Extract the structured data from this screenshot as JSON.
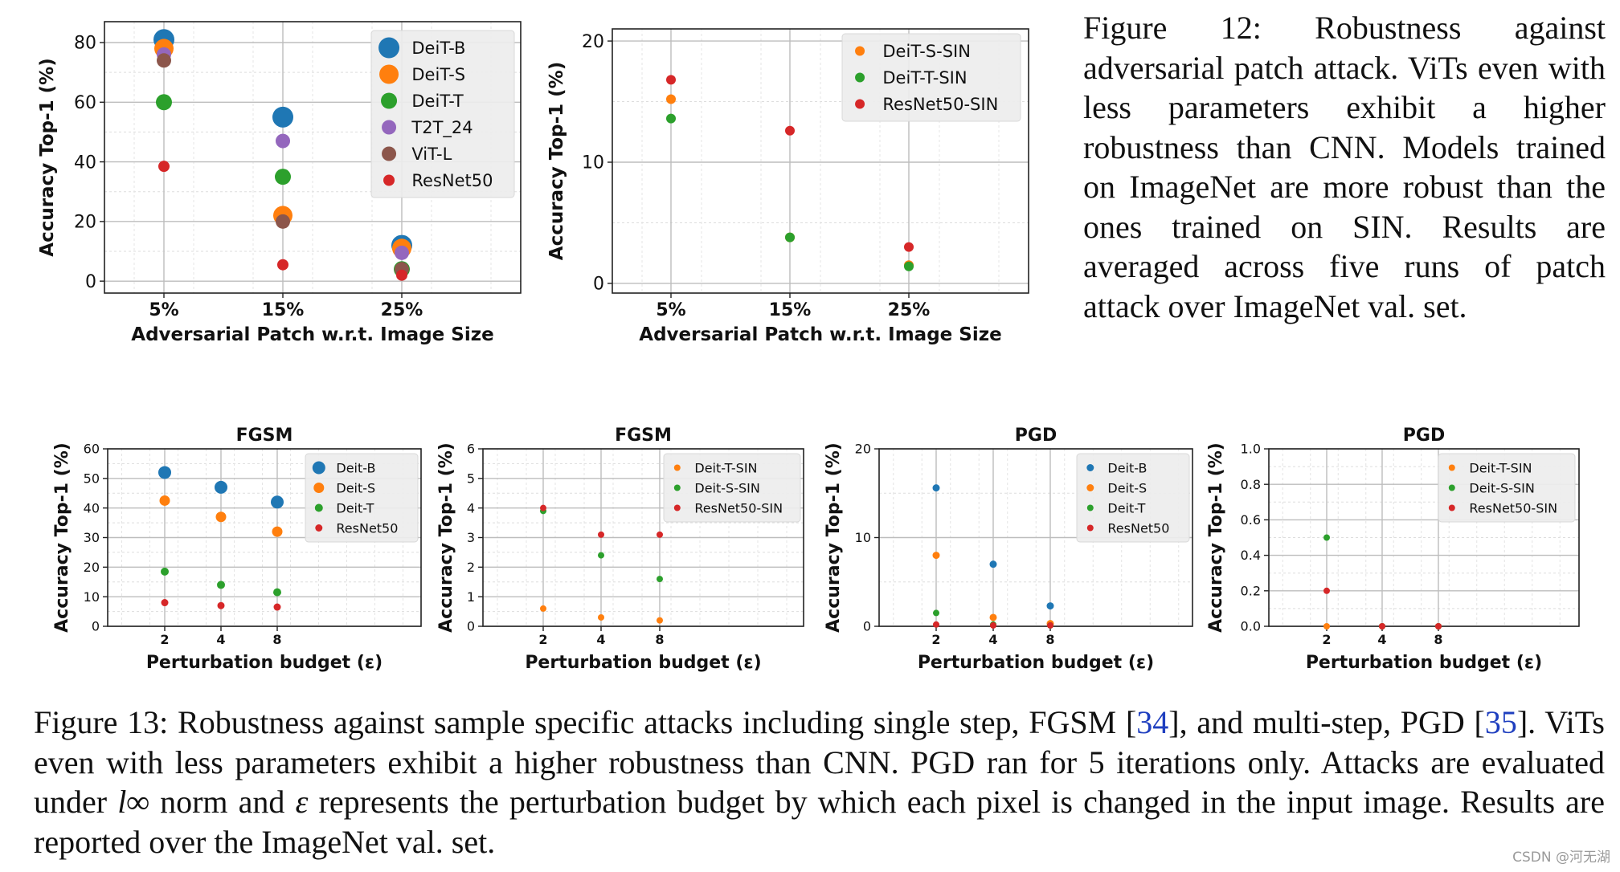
{
  "chart_data": [
    {
      "id": "fig12a",
      "type": "scatter",
      "xlabel": "Adversarial Patch w.r.t. Image Size",
      "ylabel": "Accuracy Top-1 (%)",
      "categories": [
        "5%",
        "15%",
        "25%"
      ],
      "yticks": [
        0,
        20,
        40,
        60,
        80
      ],
      "ylim": [
        -4,
        87
      ],
      "legend_position": "top-right",
      "grid": true,
      "series": [
        {
          "name": "DeiT-B",
          "color": "#1f77b4",
          "values": [
            81,
            55,
            12
          ]
        },
        {
          "name": "DeiT-S",
          "color": "#ff7f0e",
          "values": [
            78,
            22,
            11
          ]
        },
        {
          "name": "DeiT-T",
          "color": "#2ca02c",
          "values": [
            60,
            35,
            4
          ]
        },
        {
          "name": "T2T_24",
          "color": "#9467bd",
          "values": [
            76,
            47,
            9.5
          ]
        },
        {
          "name": "ViT-L",
          "color": "#8c564b",
          "values": [
            74,
            20,
            4
          ]
        },
        {
          "name": "ResNet50",
          "color": "#d62728",
          "values": [
            38.5,
            5.5,
            2
          ]
        }
      ]
    },
    {
      "id": "fig12b",
      "type": "scatter",
      "xlabel": "Adversarial Patch w.r.t. Image Size",
      "ylabel": "Accuracy Top-1 (%)",
      "categories": [
        "5%",
        "15%",
        "25%"
      ],
      "yticks": [
        0,
        10,
        20
      ],
      "ylim": [
        -0.8,
        21
      ],
      "legend_position": "top-right",
      "grid": true,
      "series": [
        {
          "name": "DeiT-S-SIN",
          "color": "#ff7f0e",
          "values": [
            15.2,
            3.8,
            1.5
          ]
        },
        {
          "name": "DeiT-T-SIN",
          "color": "#2ca02c",
          "values": [
            13.6,
            3.8,
            1.4
          ]
        },
        {
          "name": "ResNet50-SIN",
          "color": "#d62728",
          "values": [
            16.8,
            12.6,
            3
          ]
        }
      ]
    },
    {
      "id": "fig13a",
      "type": "scatter",
      "title": "FGSM",
      "xlabel": "Perturbation budget (ε)",
      "ylabel": "Accuracy Top-1 (%)",
      "categories": [
        "2",
        "4",
        "8"
      ],
      "yticks": [
        0,
        10,
        20,
        30,
        40,
        50,
        60
      ],
      "ylim": [
        0,
        60
      ],
      "legend_position": "top-right",
      "grid": true,
      "series": [
        {
          "name": "Deit-B",
          "color": "#1f77b4",
          "values": [
            52,
            47,
            42
          ]
        },
        {
          "name": "Deit-S",
          "color": "#ff7f0e",
          "values": [
            42.5,
            37,
            32
          ]
        },
        {
          "name": "Deit-T",
          "color": "#2ca02c",
          "values": [
            18.5,
            14,
            11.5
          ]
        },
        {
          "name": "ResNet50",
          "color": "#d62728",
          "values": [
            8,
            7,
            6.5
          ]
        }
      ]
    },
    {
      "id": "fig13b",
      "type": "scatter",
      "title": "FGSM",
      "xlabel": "Perturbation budget (ε)",
      "ylabel": "Accuracy Top-1 (%)",
      "categories": [
        "2",
        "4",
        "8"
      ],
      "yticks": [
        0,
        1,
        2,
        3,
        4,
        5,
        6
      ],
      "ylim": [
        0,
        6
      ],
      "legend_position": "top-right",
      "grid": true,
      "series": [
        {
          "name": "Deit-T-SIN",
          "color": "#ff7f0e",
          "values": [
            0.6,
            0.3,
            0.2
          ]
        },
        {
          "name": "Deit-S-SIN",
          "color": "#2ca02c",
          "values": [
            3.9,
            2.4,
            1.6
          ]
        },
        {
          "name": "ResNet50-SIN",
          "color": "#d62728",
          "values": [
            4,
            3.1,
            3.1
          ]
        }
      ]
    },
    {
      "id": "fig13c",
      "type": "scatter",
      "title": "PGD",
      "xlabel": "Perturbation budget (ε)",
      "ylabel": "Accuracy Top-1 (%)",
      "categories": [
        "2",
        "4",
        "8"
      ],
      "yticks": [
        0,
        10,
        20
      ],
      "ylim": [
        0,
        20
      ],
      "legend_position": "top-right",
      "grid": true,
      "series": [
        {
          "name": "Deit-B",
          "color": "#1f77b4",
          "values": [
            15.6,
            7,
            2.3
          ]
        },
        {
          "name": "Deit-S",
          "color": "#ff7f0e",
          "values": [
            8,
            1,
            0.3
          ]
        },
        {
          "name": "Deit-T",
          "color": "#2ca02c",
          "values": [
            1.5,
            0.2,
            0.1
          ]
        },
        {
          "name": "ResNet50",
          "color": "#d62728",
          "values": [
            0.2,
            0.1,
            0.1
          ]
        }
      ]
    },
    {
      "id": "fig13d",
      "type": "scatter",
      "title": "PGD",
      "xlabel": "Perturbation budget (ε)",
      "ylabel": "Accuracy Top-1 (%)",
      "categories": [
        "2",
        "4",
        "8"
      ],
      "yticks": [
        "0.0",
        "0.2",
        "0.4",
        "0.6",
        "0.8",
        "1.0"
      ],
      "ylim": [
        0,
        1
      ],
      "legend_position": "top-right",
      "grid": true,
      "series": [
        {
          "name": "Deit-T-SIN",
          "color": "#ff7f0e",
          "values": [
            0,
            0,
            0
          ]
        },
        {
          "name": "Deit-S-SIN",
          "color": "#2ca02c",
          "values": [
            0.5,
            0,
            0
          ]
        },
        {
          "name": "ResNet50-SIN",
          "color": "#d62728",
          "values": [
            0.2,
            0,
            0
          ]
        }
      ]
    }
  ],
  "captions": {
    "fig12": "Figure 12: Robustness against adversarial patch attack. ViTs even with less parameters exhibit a higher robustness than CNN. Models trained on ImageNet are more robust than the ones trained on SIN. Results are averaged across five runs of patch attack over ImageNet val. set.",
    "fig13": {
      "part1": "Figure 13: Robustness against sample specific attacks including single step, FGSM [",
      "ref1": "34",
      "part2": "], and multi-step, PGD [",
      "ref2": "35",
      "part3": "]. ViTs even with less parameters exhibit a higher robustness than CNN. PGD ran for 5 iterations only. Attacks are evaluated under ",
      "math1": "l∞",
      "part4": " norm and ",
      "math2": "ε",
      "part5": " represents the perturbation budget by which each pixel is changed in the input image. Results are reported over the ImageNet val. set."
    }
  },
  "watermark": "CSDN @河无湖"
}
